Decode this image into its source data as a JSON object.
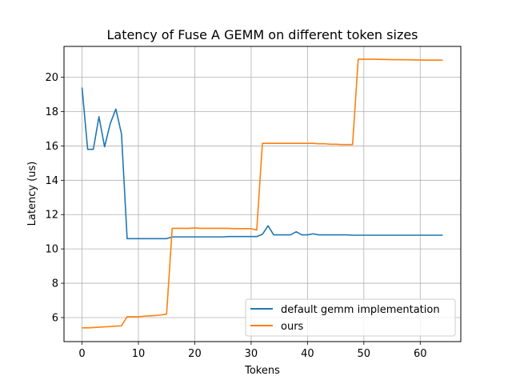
{
  "chart_data": {
    "type": "line",
    "title": "Latency of Fuse A GEMM on different token sizes",
    "xlabel": "Tokens",
    "ylabel": "Latency (us)",
    "xlim": [
      -3.2,
      67.2
    ],
    "ylim": [
      4.6,
      21.8
    ],
    "xticks": [
      0,
      10,
      20,
      30,
      40,
      50,
      60
    ],
    "yticks": [
      6,
      8,
      10,
      12,
      14,
      16,
      18,
      20
    ],
    "grid": true,
    "legend_position": "bottom-right",
    "series": [
      {
        "name": "default gemm implementation",
        "color": "#1f77b4",
        "x": [
          0,
          1,
          2,
          3,
          4,
          5,
          6,
          7,
          8,
          9,
          10,
          11,
          12,
          13,
          14,
          15,
          16,
          17,
          18,
          19,
          20,
          21,
          22,
          23,
          24,
          25,
          26,
          27,
          28,
          29,
          30,
          31,
          32,
          33,
          34,
          35,
          36,
          37,
          38,
          39,
          40,
          41,
          42,
          43,
          44,
          45,
          46,
          47,
          48,
          49,
          50,
          51,
          52,
          53,
          54,
          55,
          56,
          57,
          58,
          59,
          60,
          61,
          62,
          63,
          64
        ],
        "values": [
          19.4,
          15.8,
          15.8,
          17.7,
          15.95,
          17.3,
          18.15,
          16.7,
          10.6,
          10.6,
          10.6,
          10.6,
          10.6,
          10.6,
          10.6,
          10.6,
          10.7,
          10.7,
          10.7,
          10.7,
          10.7,
          10.7,
          10.7,
          10.7,
          10.7,
          10.7,
          10.72,
          10.72,
          10.72,
          10.72,
          10.72,
          10.72,
          10.85,
          11.35,
          10.82,
          10.82,
          10.82,
          10.82,
          11.0,
          10.82,
          10.82,
          10.88,
          10.82,
          10.82,
          10.82,
          10.82,
          10.82,
          10.82,
          10.8,
          10.8,
          10.8,
          10.8,
          10.8,
          10.8,
          10.8,
          10.8,
          10.8,
          10.8,
          10.8,
          10.8,
          10.8,
          10.8,
          10.8,
          10.8,
          10.8
        ]
      },
      {
        "name": "ours",
        "color": "#ff7f0e",
        "x": [
          0,
          1,
          2,
          3,
          4,
          5,
          6,
          7,
          8,
          9,
          10,
          11,
          12,
          13,
          14,
          15,
          16,
          17,
          18,
          19,
          20,
          21,
          22,
          23,
          24,
          25,
          26,
          27,
          28,
          29,
          30,
          31,
          32,
          33,
          34,
          35,
          36,
          37,
          38,
          39,
          40,
          41,
          42,
          43,
          44,
          45,
          46,
          47,
          48,
          49,
          50,
          51,
          52,
          53,
          54,
          55,
          56,
          57,
          58,
          59,
          60,
          61,
          62,
          63,
          64
        ],
        "values": [
          5.4,
          5.4,
          5.42,
          5.44,
          5.46,
          5.48,
          5.5,
          5.52,
          6.05,
          6.05,
          6.05,
          6.08,
          6.1,
          6.12,
          6.15,
          6.2,
          11.2,
          11.2,
          11.2,
          11.2,
          11.22,
          11.2,
          11.2,
          11.2,
          11.2,
          11.2,
          11.2,
          11.18,
          11.18,
          11.18,
          11.18,
          11.1,
          16.15,
          16.15,
          16.15,
          16.15,
          16.15,
          16.15,
          16.15,
          16.15,
          16.15,
          16.15,
          16.13,
          16.13,
          16.1,
          16.1,
          16.08,
          16.08,
          16.08,
          21.05,
          21.05,
          21.05,
          21.05,
          21.04,
          21.04,
          21.03,
          21.03,
          21.02,
          21.02,
          21.01,
          21.01,
          21.0,
          21.0,
          21.0,
          21.0
        ]
      }
    ]
  }
}
